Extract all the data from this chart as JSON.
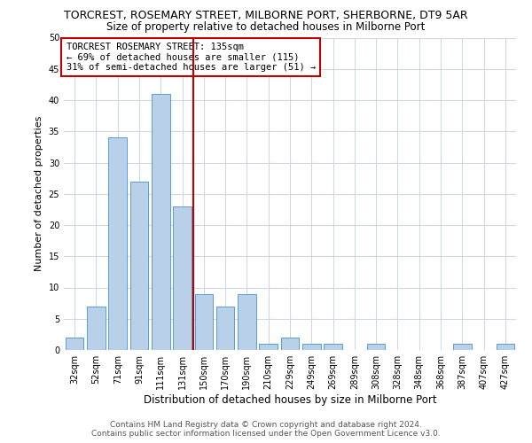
{
  "title": "TORCREST, ROSEMARY STREET, MILBORNE PORT, SHERBORNE, DT9 5AR",
  "subtitle": "Size of property relative to detached houses in Milborne Port",
  "xlabel": "Distribution of detached houses by size in Milborne Port",
  "ylabel": "Number of detached properties",
  "footer1": "Contains HM Land Registry data © Crown copyright and database right 2024.",
  "footer2": "Contains public sector information licensed under the Open Government Licence v3.0.",
  "categories": [
    "32sqm",
    "52sqm",
    "71sqm",
    "91sqm",
    "111sqm",
    "131sqm",
    "150sqm",
    "170sqm",
    "190sqm",
    "210sqm",
    "229sqm",
    "249sqm",
    "269sqm",
    "289sqm",
    "308sqm",
    "328sqm",
    "348sqm",
    "368sqm",
    "387sqm",
    "407sqm",
    "427sqm"
  ],
  "values": [
    2,
    7,
    34,
    27,
    41,
    23,
    9,
    7,
    9,
    1,
    2,
    1,
    1,
    0,
    1,
    0,
    0,
    0,
    1,
    0,
    1
  ],
  "bar_color": "#b8d0e8",
  "bar_edge_color": "#5b9bd5",
  "highlight_color": "#c00000",
  "highlight_index": 5,
  "annotation_line1": "TORCREST ROSEMARY STREET: 135sqm",
  "annotation_line2": "← 69% of detached houses are smaller (115)",
  "annotation_line3": "31% of semi-detached houses are larger (51) →",
  "ylim": [
    0,
    50
  ],
  "yticks": [
    0,
    5,
    10,
    15,
    20,
    25,
    30,
    35,
    40,
    45,
    50
  ],
  "background_color": "#ffffff",
  "grid_color": "#d0d8e8",
  "title_fontsize": 9,
  "subtitle_fontsize": 8.5,
  "ylabel_fontsize": 8,
  "xlabel_fontsize": 8.5,
  "tick_fontsize": 7,
  "annotation_fontsize": 7.5,
  "footer_fontsize": 6.5
}
